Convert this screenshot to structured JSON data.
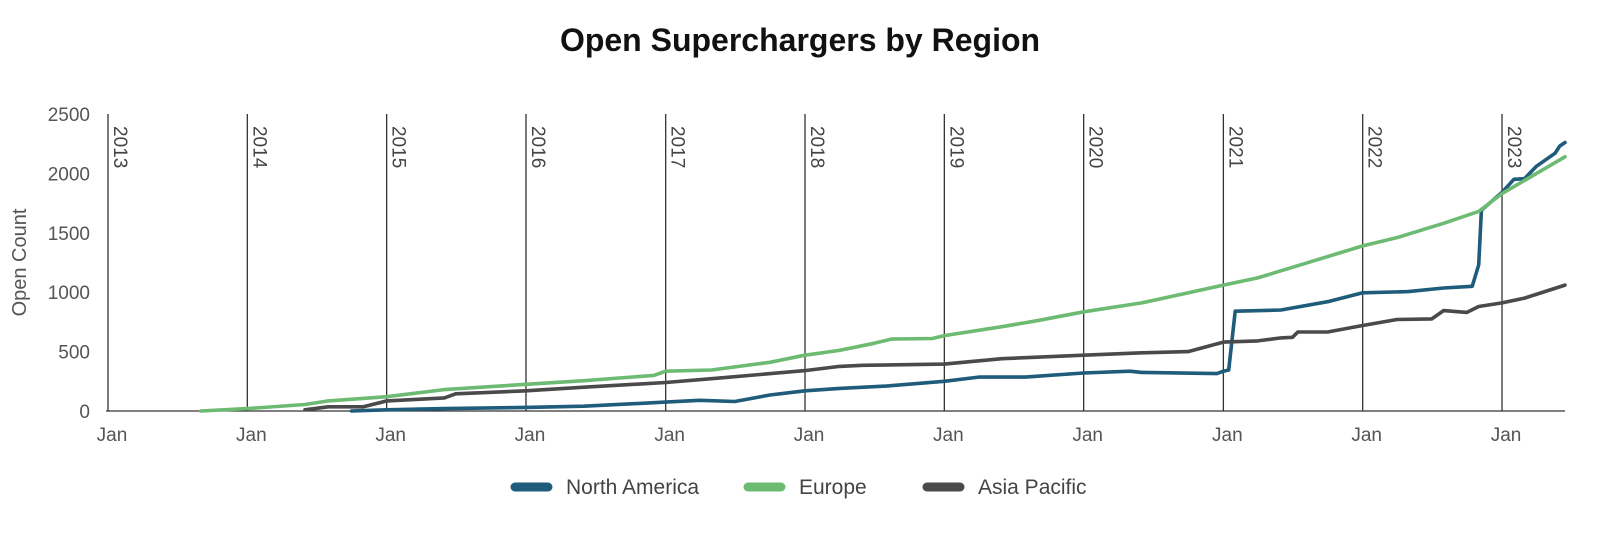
{
  "chart_data": {
    "type": "line",
    "title": "Open Superchargers by Region",
    "ylabel": "Open Count",
    "xlabel": "",
    "ylim": [
      0,
      2500
    ],
    "yticks": [
      0,
      500,
      1000,
      1500,
      2000,
      2500
    ],
    "xlim": [
      "2013-01-01",
      "2023-06-15"
    ],
    "x_tick_label": "Jan",
    "years": [
      "2013",
      "2014",
      "2015",
      "2016",
      "2017",
      "2018",
      "2019",
      "2020",
      "2021",
      "2022",
      "2023"
    ],
    "grid": "vertical lines at each January",
    "legend_position": "bottom",
    "series": [
      {
        "name": "North America",
        "color": "#1f5b7a",
        "points": [
          [
            "2014-10-01",
            0
          ],
          [
            "2015-01-01",
            10
          ],
          [
            "2015-06-01",
            20
          ],
          [
            "2016-01-01",
            30
          ],
          [
            "2016-06-01",
            40
          ],
          [
            "2017-01-01",
            75
          ],
          [
            "2017-04-01",
            90
          ],
          [
            "2017-07-01",
            80
          ],
          [
            "2017-10-01",
            135
          ],
          [
            "2018-01-01",
            170
          ],
          [
            "2018-04-01",
            190
          ],
          [
            "2018-08-01",
            210
          ],
          [
            "2019-01-01",
            250
          ],
          [
            "2019-04-01",
            285
          ],
          [
            "2019-08-01",
            285
          ],
          [
            "2020-01-01",
            320
          ],
          [
            "2020-05-01",
            335
          ],
          [
            "2020-06-01",
            325
          ],
          [
            "2020-12-15",
            315
          ],
          [
            "2021-01-01",
            335
          ],
          [
            "2021-01-15",
            345
          ],
          [
            "2021-02-01",
            840
          ],
          [
            "2021-06-01",
            850
          ],
          [
            "2021-10-01",
            920
          ],
          [
            "2022-01-01",
            995
          ],
          [
            "2022-05-01",
            1005
          ],
          [
            "2022-08-01",
            1035
          ],
          [
            "2022-10-15",
            1050
          ],
          [
            "2022-11-01",
            1230
          ],
          [
            "2022-11-08",
            1690
          ],
          [
            "2023-01-01",
            1840
          ],
          [
            "2023-02-01",
            1950
          ],
          [
            "2023-03-01",
            1955
          ],
          [
            "2023-04-01",
            2060
          ],
          [
            "2023-05-20",
            2170
          ],
          [
            "2023-06-01",
            2230
          ],
          [
            "2023-06-15",
            2260
          ]
        ]
      },
      {
        "name": "Europe",
        "color": "#6dbb72",
        "points": [
          [
            "2013-09-01",
            0
          ],
          [
            "2014-01-01",
            20
          ],
          [
            "2014-06-01",
            55
          ],
          [
            "2014-08-01",
            85
          ],
          [
            "2015-01-01",
            120
          ],
          [
            "2015-06-01",
            180
          ],
          [
            "2016-01-01",
            225
          ],
          [
            "2016-06-01",
            255
          ],
          [
            "2016-12-01",
            300
          ],
          [
            "2017-01-01",
            335
          ],
          [
            "2017-05-01",
            345
          ],
          [
            "2017-10-01",
            410
          ],
          [
            "2018-01-01",
            470
          ],
          [
            "2018-04-01",
            510
          ],
          [
            "2018-07-01",
            570
          ],
          [
            "2018-08-15",
            605
          ],
          [
            "2018-12-01",
            610
          ],
          [
            "2019-01-01",
            635
          ],
          [
            "2019-06-01",
            710
          ],
          [
            "2019-09-01",
            760
          ],
          [
            "2020-01-01",
            835
          ],
          [
            "2020-06-01",
            910
          ],
          [
            "2021-01-01",
            1060
          ],
          [
            "2021-04-01",
            1120
          ],
          [
            "2021-08-01",
            1240
          ],
          [
            "2022-01-01",
            1390
          ],
          [
            "2022-04-01",
            1460
          ],
          [
            "2022-08-01",
            1580
          ],
          [
            "2022-11-01",
            1680
          ],
          [
            "2023-01-01",
            1830
          ],
          [
            "2023-06-15",
            2140
          ]
        ]
      },
      {
        "name": "Asia Pacific",
        "color": "#4a4a4a",
        "points": [
          [
            "2014-06-01",
            10
          ],
          [
            "2014-08-01",
            35
          ],
          [
            "2014-11-01",
            35
          ],
          [
            "2015-01-01",
            85
          ],
          [
            "2015-06-01",
            110
          ],
          [
            "2015-07-01",
            145
          ],
          [
            "2016-01-01",
            170
          ],
          [
            "2016-06-01",
            200
          ],
          [
            "2017-01-01",
            240
          ],
          [
            "2017-06-01",
            280
          ],
          [
            "2018-01-01",
            340
          ],
          [
            "2018-04-01",
            375
          ],
          [
            "2018-06-01",
            385
          ],
          [
            "2019-01-01",
            395
          ],
          [
            "2019-06-01",
            440
          ],
          [
            "2020-01-01",
            470
          ],
          [
            "2020-06-01",
            490
          ],
          [
            "2020-10-01",
            500
          ],
          [
            "2021-01-01",
            580
          ],
          [
            "2021-04-01",
            590
          ],
          [
            "2021-06-01",
            615
          ],
          [
            "2021-07-01",
            620
          ],
          [
            "2021-07-15",
            665
          ],
          [
            "2021-10-01",
            665
          ],
          [
            "2022-01-01",
            720
          ],
          [
            "2022-04-01",
            770
          ],
          [
            "2022-07-01",
            775
          ],
          [
            "2022-08-01",
            845
          ],
          [
            "2022-10-01",
            830
          ],
          [
            "2022-11-01",
            880
          ],
          [
            "2023-01-01",
            910
          ],
          [
            "2023-03-01",
            950
          ],
          [
            "2023-06-15",
            1060
          ]
        ]
      }
    ]
  }
}
